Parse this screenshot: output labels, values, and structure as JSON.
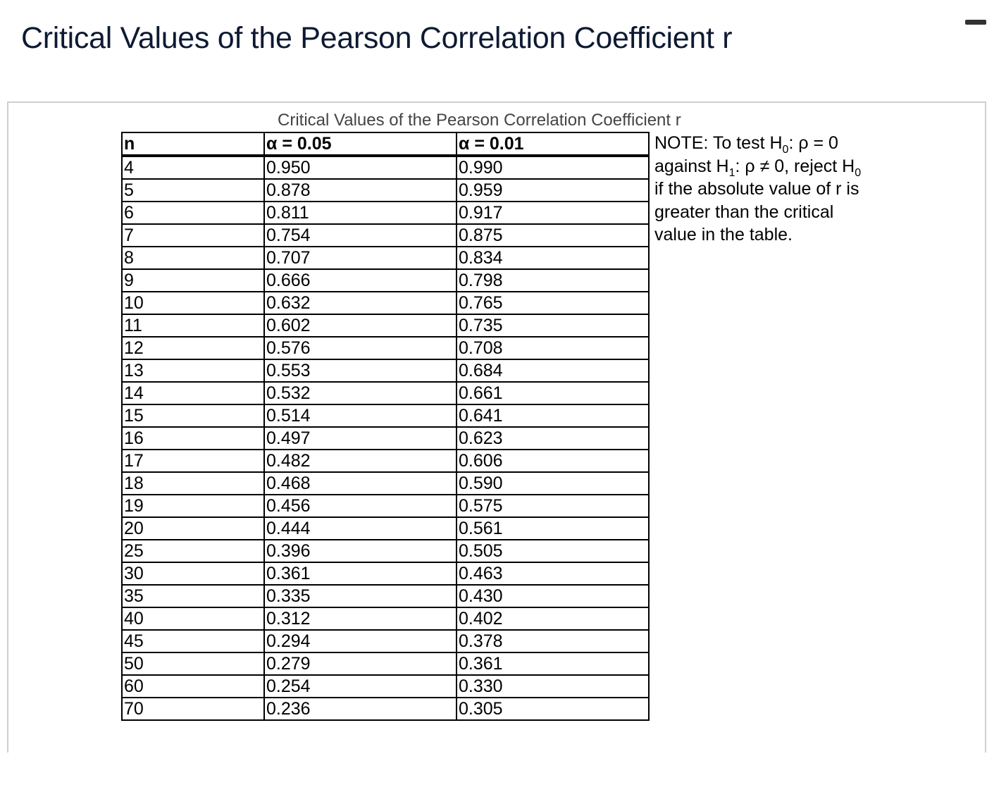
{
  "page": {
    "title": "Critical Values of the Pearson Correlation Coefficient r"
  },
  "table": {
    "caption": "Critical Values of the Pearson Correlation Coefficient r",
    "headers": [
      "n",
      "α = 0.05",
      "α = 0.01"
    ],
    "rows": [
      [
        "4",
        "0.950",
        "0.990"
      ],
      [
        "5",
        "0.878",
        "0.959"
      ],
      [
        "6",
        "0.811",
        "0.917"
      ],
      [
        "7",
        "0.754",
        "0.875"
      ],
      [
        "8",
        "0.707",
        "0.834"
      ],
      [
        "9",
        "0.666",
        "0.798"
      ],
      [
        "10",
        "0.632",
        "0.765"
      ],
      [
        "11",
        "0.602",
        "0.735"
      ],
      [
        "12",
        "0.576",
        "0.708"
      ],
      [
        "13",
        "0.553",
        "0.684"
      ],
      [
        "14",
        "0.532",
        "0.661"
      ],
      [
        "15",
        "0.514",
        "0.641"
      ],
      [
        "16",
        "0.497",
        "0.623"
      ],
      [
        "17",
        "0.482",
        "0.606"
      ],
      [
        "18",
        "0.468",
        "0.590"
      ],
      [
        "19",
        "0.456",
        "0.575"
      ],
      [
        "20",
        "0.444",
        "0.561"
      ],
      [
        "25",
        "0.396",
        "0.505"
      ],
      [
        "30",
        "0.361",
        "0.463"
      ],
      [
        "35",
        "0.335",
        "0.430"
      ],
      [
        "40",
        "0.312",
        "0.402"
      ],
      [
        "45",
        "0.294",
        "0.378"
      ],
      [
        "50",
        "0.279",
        "0.361"
      ],
      [
        "60",
        "0.254",
        "0.330"
      ],
      [
        "70",
        "0.236",
        "0.305"
      ]
    ]
  },
  "note": {
    "line1_prefix": "NOTE: To test H",
    "line1_sub": "0",
    "line1_suffix": ": ρ = 0",
    "line2_prefix": "against H",
    "line2_sub": "1",
    "line2_mid": ": ρ ≠ 0, reject H",
    "line2_sub2": "0",
    "line3": "if the absolute value of r is",
    "line4": "greater than the critical",
    "line5": "value in the table."
  }
}
